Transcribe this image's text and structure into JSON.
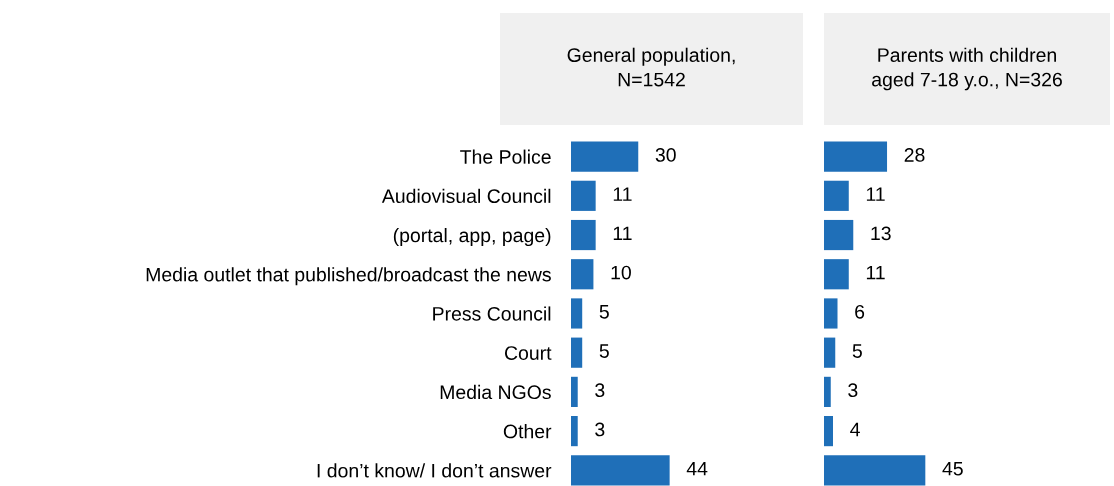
{
  "chart_data": [
    {
      "type": "bar",
      "orientation": "horizontal",
      "title": "General population,\nN=1542",
      "categories": [
        "The Police",
        "Audiovisual Council",
        "(portal, app, page)",
        "Media outlet that published/broadcast the news",
        "Press Council",
        "Court",
        "Media NGOs",
        "Other",
        "I don’t know/ I don’t answer"
      ],
      "values": [
        30,
        11,
        11,
        10,
        5,
        5,
        3,
        3,
        44
      ],
      "color": "#1f6fb8",
      "data_labels": true,
      "tick_labels": "y",
      "grid": false,
      "legend": false
    },
    {
      "type": "bar",
      "orientation": "horizontal",
      "title": "Parents with children\naged 7-18 y.o., N=326",
      "categories": [
        null,
        null,
        null,
        null,
        null,
        null,
        null,
        null,
        null
      ],
      "values": [
        28,
        11,
        13,
        11,
        6,
        5,
        3,
        4,
        45
      ],
      "color": "#1f6fb8",
      "data_labels": true,
      "tick_labels": false,
      "grid": false,
      "legend": false
    }
  ]
}
